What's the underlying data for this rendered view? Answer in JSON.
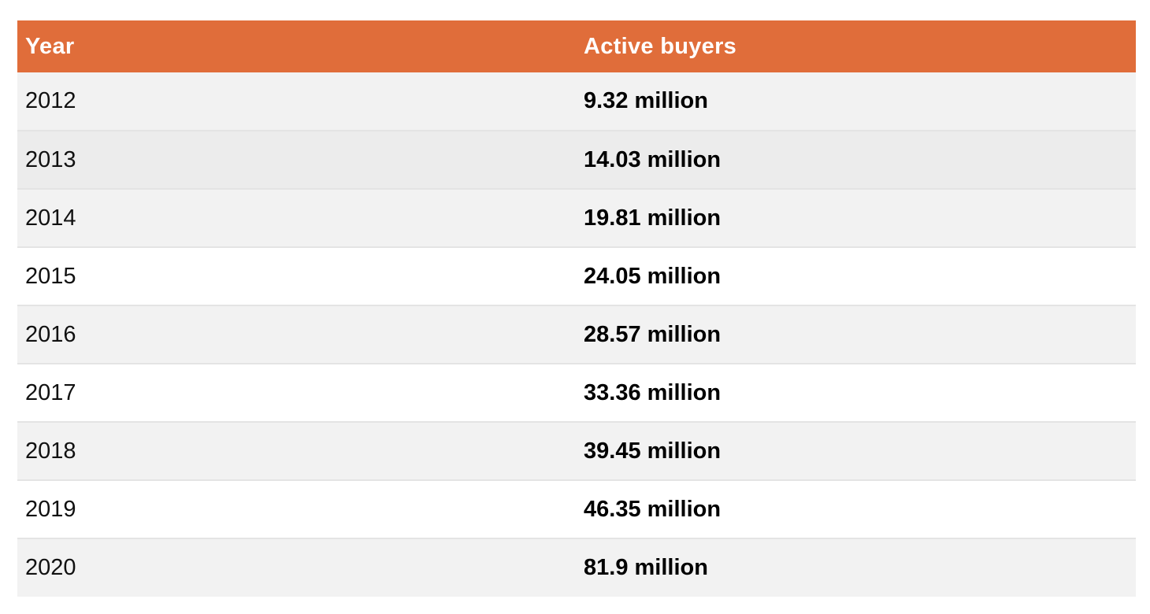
{
  "chart_data": {
    "type": "table",
    "columns": [
      "Year",
      "Active buyers"
    ],
    "rows": [
      {
        "year": "2012",
        "value": "9.32 million",
        "shade": "shade"
      },
      {
        "year": "2013",
        "value": "14.03 million",
        "shade": "shade2"
      },
      {
        "year": "2014",
        "value": "19.81 million",
        "shade": "shade"
      },
      {
        "year": "2015",
        "value": "24.05 million",
        "shade": ""
      },
      {
        "year": "2016",
        "value": "28.57 million",
        "shade": "shade"
      },
      {
        "year": "2017",
        "value": "33.36 million",
        "shade": ""
      },
      {
        "year": "2018",
        "value": "39.45 million",
        "shade": "shade"
      },
      {
        "year": "2019",
        "value": "46.35 million",
        "shade": ""
      },
      {
        "year": "2020",
        "value": "81.9 million",
        "shade": "shade"
      }
    ]
  },
  "colors": {
    "header_bg": "#e06d3a",
    "header_text": "#ffffff",
    "row_shade": "#f2f2f2",
    "row_plain": "#ffffff"
  }
}
